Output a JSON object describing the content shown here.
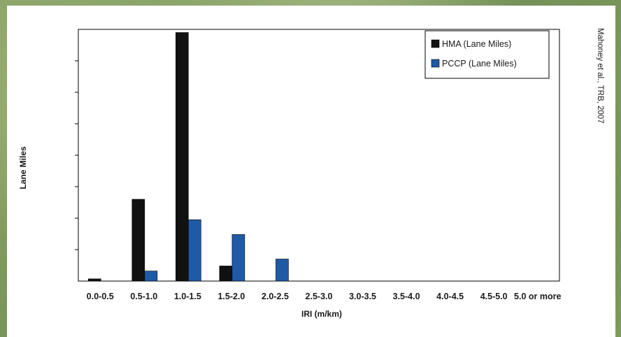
{
  "chart_data": {
    "type": "bar",
    "categories": [
      "0.0-0.5",
      "0.5-1.0",
      "1.0-1.5",
      "1.5-2.0",
      "2.0-2.5",
      "2.5-3.0",
      "3.0-3.5",
      "3.5-4.0",
      "4.0-4.5",
      "4.5-5.0",
      "5.0 or more"
    ],
    "series": [
      {
        "name": "HMA (Lane Miles)",
        "color": "#111111",
        "values": [
          0.07,
          2.6,
          7.9,
          0.48,
          0,
          0,
          0,
          0,
          0,
          0,
          0
        ]
      },
      {
        "name": "PCCP (Lane Miles)",
        "color": "#1f5aa6",
        "values": [
          0,
          0.32,
          1.95,
          1.48,
          0.7,
          0,
          0,
          0,
          0,
          0,
          0
        ]
      }
    ],
    "xlabel": "IRI (m/km)",
    "ylabel": "Lane Miles",
    "ylim": [
      0,
      8
    ],
    "y_tick_count": 8,
    "y_tick_labels_shown": false,
    "grid": false,
    "legend": "top-right"
  },
  "credit": "Mahoney et al., TRB, 2007"
}
